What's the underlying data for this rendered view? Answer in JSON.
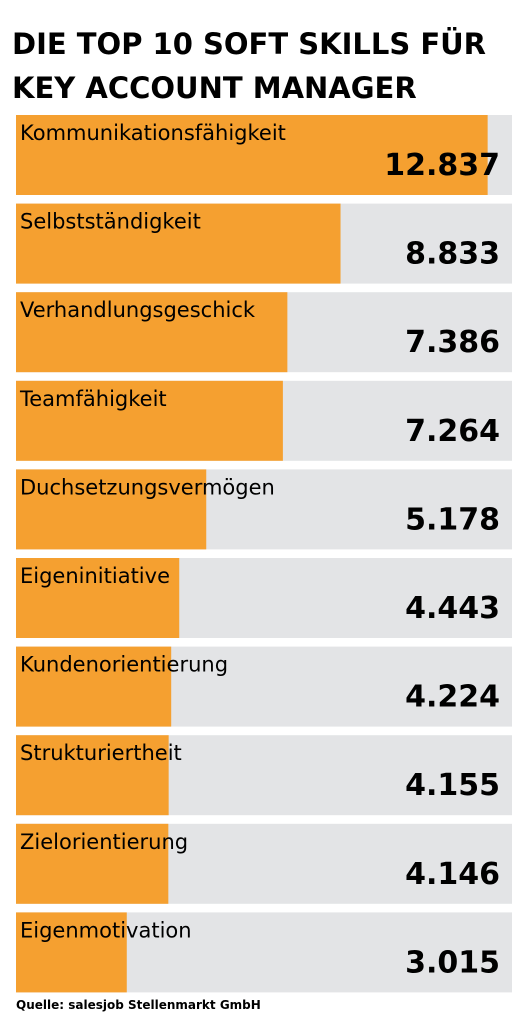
{
  "title_line1": "DIE TOP 10 SOFT SKILLS FÜR",
  "title_line2": "KEY ACCOUNT MANAGER",
  "source": "Quelle: salesjob Stellenmarkt GmbH",
  "colors": {
    "bar": "#F5A030",
    "track": "#E3E4E6",
    "text": "#000000"
  },
  "chart_data": {
    "type": "bar",
    "orientation": "horizontal",
    "title": "DIE TOP 10 SOFT SKILLS FÜR KEY ACCOUNT MANAGER",
    "categories": [
      "Kommunikationsfähigkeit",
      "Selbstständigkeit",
      "Verhandlungsgeschick",
      "Teamfähigkeit",
      "Duchsetzungsvermögen",
      "Eigeninitiative",
      "Kundenorientierung",
      "Strukturiertheit",
      "Zielorientierung",
      "Eigenmotivation"
    ],
    "values": [
      12837,
      8833,
      7386,
      7264,
      5178,
      4443,
      4224,
      4155,
      4146,
      3015
    ],
    "value_labels": [
      "12.837",
      "8.833",
      "7.386",
      "7.264",
      "5.178",
      "4.443",
      "4.224",
      "4.155",
      "4.146",
      "3.015"
    ],
    "xlim": [
      0,
      13500
    ]
  }
}
